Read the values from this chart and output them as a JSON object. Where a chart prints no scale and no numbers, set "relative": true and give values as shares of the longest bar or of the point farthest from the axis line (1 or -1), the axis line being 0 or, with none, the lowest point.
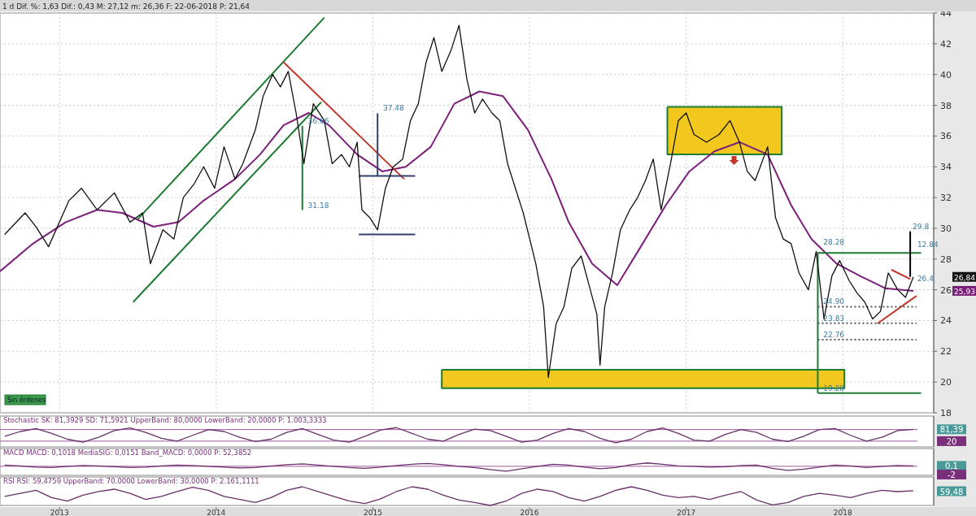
{
  "chart_data": [
    {
      "type": "line",
      "title": "1 d  Dif. %: 1,63  Dif.: 0,43  M: 27,12  m: 26,36  F: 22-06-2018  P: 21,64",
      "xlim": [
        2012.62,
        2018.58
      ],
      "ylim": [
        18,
        44
      ],
      "yticks": [
        18,
        20,
        22,
        24,
        26,
        28,
        30,
        32,
        34,
        36,
        38,
        40,
        42,
        44
      ],
      "xticks": [
        2013,
        2014,
        2015,
        2016,
        2017,
        2018
      ],
      "tick_labels": "y",
      "grid": true,
      "series": [
        {
          "color": "#111111",
          "x": [
            2012.65,
            2012.78,
            2012.85,
            2012.93,
            2013.06,
            2013.14,
            2013.24,
            2013.35,
            2013.45,
            2013.53,
            2013.58,
            2013.66,
            2013.73,
            2013.79,
            2013.86,
            2013.92,
            2013.99,
            2014.05,
            2014.12,
            2014.17,
            2014.25,
            2014.3,
            2014.36,
            2014.41,
            2014.46,
            2014.51,
            2014.56,
            2014.62,
            2014.69,
            2014.74,
            2014.8,
            2014.85,
            2014.9,
            2014.93,
            2014.98,
            2015.03,
            2015.08,
            2015.13,
            2015.19,
            2015.24,
            2015.29,
            2015.34,
            2015.39,
            2015.44,
            2015.5,
            2015.55,
            2015.6,
            2015.65,
            2015.7,
            2015.76,
            2015.81,
            2015.86,
            2015.91,
            2015.96,
            2016.04,
            2016.09,
            2016.12,
            2016.17,
            2016.22,
            2016.27,
            2016.33,
            2016.38,
            2016.43,
            2016.45,
            2016.48,
            2016.53,
            2016.58,
            2016.64,
            2016.69,
            2016.74,
            2016.79,
            2016.84,
            2016.9,
            2016.95,
            2017.0,
            2017.05,
            2017.13,
            2017.21,
            2017.28,
            2017.34,
            2017.39,
            2017.44,
            2017.52,
            2017.57,
            2017.62,
            2017.67,
            2017.72,
            2017.78,
            2017.83,
            2017.88,
            2017.93,
            2017.98,
            2018.04,
            2018.09,
            2018.14,
            2018.19,
            2018.24,
            2018.29,
            2018.35,
            2018.4,
            2018.45
          ],
          "values": [
            29.6,
            31.0,
            30.1,
            28.8,
            31.8,
            32.6,
            31.2,
            32.3,
            30.4,
            31.0,
            27.7,
            29.9,
            29.3,
            32.0,
            32.9,
            34.0,
            32.6,
            35.3,
            33.2,
            34.2,
            36.4,
            38.6,
            40.0,
            39.2,
            40.2,
            37.5,
            34.2,
            38.1,
            37.0,
            34.2,
            34.8,
            34.0,
            35.6,
            31.2,
            30.7,
            29.9,
            32.6,
            34.0,
            34.5,
            37.0,
            38.1,
            40.8,
            42.4,
            40.2,
            41.6,
            43.2,
            39.7,
            37.5,
            38.4,
            37.5,
            37.0,
            34.2,
            32.6,
            31.0,
            27.7,
            24.9,
            20.3,
            23.8,
            24.9,
            27.4,
            28.2,
            26.3,
            24.4,
            21.1,
            24.9,
            27.1,
            29.9,
            31.2,
            32.0,
            33.1,
            34.5,
            31.2,
            34.2,
            37.0,
            37.5,
            36.1,
            35.6,
            36.1,
            37.0,
            35.6,
            33.7,
            33.1,
            35.3,
            30.7,
            29.3,
            29.0,
            27.1,
            26.0,
            28.5,
            24.1,
            26.9,
            27.9,
            26.6,
            25.8,
            25.2,
            24.1,
            24.6,
            27.1,
            26.0,
            25.5,
            26.84
          ]
        },
        {
          "color": "#7b1f7b",
          "x": [
            2012.62,
            2012.83,
            2013.04,
            2013.24,
            2013.4,
            2013.6,
            2013.76,
            2013.92,
            2014.12,
            2014.28,
            2014.43,
            2014.59,
            2014.72,
            2014.9,
            2015.06,
            2015.21,
            2015.37,
            2015.52,
            2015.68,
            2015.83,
            2015.99,
            2016.14,
            2016.25,
            2016.4,
            2016.56,
            2016.71,
            2016.87,
            2017.02,
            2017.18,
            2017.34,
            2017.52,
            2017.67,
            2017.8,
            2017.96,
            2018.11,
            2018.27,
            2018.45
          ],
          "values": [
            27.2,
            29.0,
            30.4,
            31.2,
            31.0,
            30.1,
            30.4,
            31.8,
            33.2,
            34.8,
            36.7,
            37.5,
            36.7,
            34.8,
            33.7,
            34.0,
            35.3,
            38.1,
            38.9,
            38.6,
            36.4,
            33.2,
            30.4,
            27.7,
            26.3,
            28.8,
            31.5,
            33.7,
            35.0,
            35.6,
            34.8,
            31.5,
            29.3,
            27.7,
            26.9,
            26.1,
            25.93
          ]
        },
        {
          "type": "area",
          "color": "#f2c81e",
          "x": [
            2016.88,
            2017.61,
            2017.61,
            2016.88,
            2016.88
          ],
          "values": [
            37.9,
            37.9,
            34.8,
            34.8,
            37.9
          ]
        },
        {
          "type": "area",
          "color": "#f2c81e",
          "x": [
            2015.44,
            2018.01,
            2018.01,
            2015.44,
            2015.44
          ],
          "values": [
            20.8,
            20.8,
            19.6,
            19.6,
            20.8
          ]
        },
        {
          "color": "#1e7b34",
          "x": [
            2013.5,
            2014.69
          ],
          "values": [
            30.6,
            43.7
          ]
        },
        {
          "color": "#1e7b34",
          "x": [
            2013.47,
            2014.67
          ],
          "values": [
            25.2,
            38.2
          ]
        },
        {
          "color": "#c0392b",
          "x": [
            2014.43,
            2015.2
          ],
          "values": [
            40.8,
            33.2
          ]
        },
        {
          "color": "#34406b",
          "x": [
            2014.91,
            2015.27
          ],
          "values": [
            33.4,
            33.4
          ]
        },
        {
          "color": "#34406b",
          "x": [
            2014.91,
            2015.27
          ],
          "values": [
            29.6,
            29.6
          ]
        },
        {
          "color": "#34406b",
          "x": [
            2015.03,
            2015.03
          ],
          "values": [
            33.4,
            37.48
          ]
        },
        {
          "color": "#1e7b34",
          "x": [
            2014.55,
            2014.55
          ],
          "values": [
            36.66,
            31.18
          ]
        },
        {
          "color": "#1e7b34",
          "x": [
            2017.84,
            2017.84,
            2018.5
          ],
          "values": [
            19.28,
            28.4,
            28.4
          ]
        },
        {
          "color": "#1e7b34",
          "x": [
            2017.84,
            2018.5
          ],
          "values": [
            19.28,
            19.28
          ]
        },
        {
          "color": "#c0392b",
          "x": [
            2018.31,
            2018.43
          ],
          "values": [
            27.3,
            26.7
          ]
        },
        {
          "color": "#c0392b",
          "x": [
            2018.22,
            2018.47
          ],
          "values": [
            23.8,
            25.6
          ]
        },
        {
          "color": "#000000",
          "x": [
            2018.43,
            2018.43
          ],
          "values": [
            29.8,
            26.84
          ]
        },
        {
          "color": "#555555",
          "line_style": "dotted",
          "x": [
            2017.84,
            2018.47
          ],
          "values": [
            24.9,
            24.9
          ]
        },
        {
          "color": "#555555",
          "line_style": "dotted",
          "x": [
            2017.84,
            2018.47
          ],
          "values": [
            23.83,
            23.83
          ]
        },
        {
          "color": "#555555",
          "line_style": "dotted",
          "x": [
            2017.84,
            2018.47
          ],
          "values": [
            22.76,
            22.76
          ]
        }
      ],
      "annotations": [
        {
          "text": "37.48",
          "x": 2015.05,
          "y": 37.48
        },
        {
          "text": "36.66",
          "x": 2014.57,
          "y": 36.66
        },
        {
          "text": "31.18",
          "x": 2014.57,
          "y": 31.18
        },
        {
          "text": "28.28",
          "x": 2017.86,
          "y": 28.8
        },
        {
          "text": "12.84",
          "x": 2018.46,
          "y": 28.6
        },
        {
          "text": "26.4",
          "x": 2018.46,
          "y": 26.4
        },
        {
          "text": "29.8",
          "x": 2018.43,
          "y": 29.8
        },
        {
          "text": "24.90",
          "x": 2017.86,
          "y": 24.9
        },
        {
          "text": "23.83",
          "x": 2017.86,
          "y": 23.83
        },
        {
          "text": "22.76",
          "x": 2017.86,
          "y": 22.76
        },
        {
          "text": "19.28",
          "x": 2017.86,
          "y": 19.28
        },
        "26,84",
        "25,93",
        "Sin órdenes"
      ]
    },
    {
      "type": "line",
      "title": "Stochastic  SK: 81,3929  SD: 71,5921  UpperBand: 80,0000  LowerBand: 20,0000  P: 1.003,3333",
      "xlim": [
        2012.62,
        2018.58
      ],
      "ylim": [
        -10,
        150
      ],
      "yticks": [
        {
          "value": 81.39,
          "label": "81,39"
        },
        20
      ],
      "tick_labels": "y",
      "ref_lines": [
        {
          "axis": "y",
          "value": 80,
          "color": "#a05aa0"
        },
        {
          "axis": "y",
          "value": 20,
          "color": "#a05aa0"
        }
      ],
      "series": [
        {
          "color": "#6a2f6a",
          "x": [
            2012.65,
            2012.75,
            2012.85,
            2012.95,
            2013.05,
            2013.15,
            2013.25,
            2013.35,
            2013.45,
            2013.55,
            2013.65,
            2013.75,
            2013.85,
            2013.95,
            2014.05,
            2014.15,
            2014.25,
            2014.35,
            2014.45,
            2014.55,
            2014.65,
            2014.75,
            2014.85,
            2014.95,
            2015.05,
            2015.15,
            2015.25,
            2015.35,
            2015.45,
            2015.55,
            2015.65,
            2015.75,
            2015.85,
            2015.95,
            2016.05,
            2016.15,
            2016.25,
            2016.35,
            2016.45,
            2016.55,
            2016.65,
            2016.75,
            2016.85,
            2016.95,
            2017.05,
            2017.15,
            2017.25,
            2017.35,
            2017.45,
            2017.55,
            2017.65,
            2017.75,
            2017.85,
            2017.95,
            2018.05,
            2018.15,
            2018.25,
            2018.35,
            2018.45
          ],
          "values": [
            45,
            70,
            85,
            60,
            30,
            15,
            40,
            75,
            88,
            65,
            35,
            20,
            50,
            80,
            70,
            40,
            18,
            30,
            65,
            85,
            55,
            25,
            15,
            45,
            78,
            90,
            60,
            30,
            20,
            55,
            82,
            75,
            45,
            15,
            25,
            60,
            85,
            70,
            35,
            12,
            30,
            70,
            88,
            60,
            25,
            20,
            55,
            80,
            65,
            30,
            18,
            45,
            80,
            85,
            50,
            20,
            40,
            75,
            81
          ]
        }
      ]
    },
    {
      "type": "line",
      "title": "MACD  MACD: 0,1018  MediaSIG: 0,0151  Band_MACD: 0,0000  P: 52,3852",
      "xlim": [
        2012.62,
        2018.58
      ],
      "ylim": [
        -2.2,
        4.3
      ],
      "yticks": [
        {
          "value": 0.1,
          "label": "0,1"
        },
        -2
      ],
      "tick_labels": "y",
      "ref_lines": [
        {
          "axis": "y",
          "value": 0,
          "color": "#a05aa0"
        }
      ],
      "series": [
        {
          "color": "#6a2f6a",
          "x": [
            2012.65,
            2012.75,
            2012.85,
            2012.95,
            2013.05,
            2013.15,
            2013.25,
            2013.35,
            2013.45,
            2013.55,
            2013.65,
            2013.75,
            2013.85,
            2013.95,
            2014.05,
            2014.15,
            2014.25,
            2014.35,
            2014.45,
            2014.55,
            2014.65,
            2014.75,
            2014.85,
            2014.95,
            2015.05,
            2015.15,
            2015.25,
            2015.35,
            2015.45,
            2015.55,
            2015.65,
            2015.75,
            2015.85,
            2015.95,
            2016.05,
            2016.15,
            2016.25,
            2016.35,
            2016.45,
            2016.55,
            2016.65,
            2016.75,
            2016.85,
            2016.95,
            2017.05,
            2017.15,
            2017.25,
            2017.35,
            2017.45,
            2017.55,
            2017.65,
            2017.75,
            2017.85,
            2017.95,
            2018.05,
            2018.15,
            2018.25,
            2018.35,
            2018.45
          ],
          "values": [
            0.3,
            0.1,
            -0.2,
            -0.3,
            0,
            0.2,
            0.1,
            -0.1,
            -0.3,
            -0.2,
            0.1,
            0.3,
            0.2,
            0,
            -0.2,
            -0.4,
            -0.3,
            0.1,
            0.4,
            0.6,
            0.3,
            0,
            -0.3,
            -0.5,
            -0.2,
            0.2,
            0.5,
            0.7,
            0.4,
            0,
            -0.3,
            -0.8,
            -1.2,
            -0.6,
            0,
            0.5,
            0.3,
            -0.2,
            -0.6,
            -0.3,
            0.4,
            0.8,
            0.5,
            0.1,
            0,
            -0.2,
            -0.1,
            0.2,
            0.3,
            -0.5,
            -1.0,
            -0.7,
            -0.2,
            0.3,
            0.1,
            -0.3,
            0,
            0.2,
            0.1
          ]
        }
      ]
    },
    {
      "type": "line",
      "title": "RSI  RSI: 59,4759  UpperBand: 70,0000  LowerBand: 30,0000  P: 2.161,1111",
      "xlim": [
        2012.62,
        2018.58
      ],
      "relative": true,
      "xticks": [
        2013,
        2014,
        2015,
        2016,
        2017,
        2018
      ],
      "annotations": [
        "59,48"
      ],
      "series": [
        {
          "color": "#6a2f6a",
          "x": [
            2012.65,
            2012.75,
            2012.85,
            2012.95,
            2013.05,
            2013.15,
            2013.25,
            2013.35,
            2013.45,
            2013.55,
            2013.65,
            2013.75,
            2013.85,
            2013.95,
            2014.05,
            2014.15,
            2014.25,
            2014.35,
            2014.45,
            2014.55,
            2014.65,
            2014.75,
            2014.85,
            2014.95,
            2015.05,
            2015.15,
            2015.25,
            2015.35,
            2015.45,
            2015.55,
            2015.65,
            2015.75,
            2015.85,
            2015.95,
            2016.05,
            2016.15,
            2016.25,
            2016.35,
            2016.45,
            2016.55,
            2016.65,
            2016.75,
            2016.85,
            2016.95,
            2017.05,
            2017.15,
            2017.25,
            2017.35,
            2017.45,
            2017.55,
            2017.65,
            2017.75,
            2017.85,
            2017.95,
            2018.05,
            2018.15,
            2018.25,
            2018.35,
            2018.45
          ],
          "values": [
            0.48,
            0.65,
            0.81,
            0.42,
            0.23,
            0.55,
            0.74,
            0.87,
            0.65,
            0.32,
            0.48,
            0.74,
            0.97,
            0.81,
            0.48,
            0.32,
            0.16,
            0.42,
            0.81,
            1,
            0.74,
            0.48,
            0.23,
            0.1,
            0.35,
            0.74,
            1,
            0.87,
            0.55,
            0.29,
            0.16,
            0,
            0.23,
            0.65,
            0.87,
            0.74,
            0.42,
            0.23,
            0.48,
            0.81,
            1,
            0.81,
            0.55,
            0.42,
            0.48,
            0.32,
            0.55,
            0.74,
            0.29,
            0.03,
            0.16,
            0.48,
            0.65,
            0.55,
            0.42,
            0.65,
            0.81,
            0.74,
            0.79
          ]
        }
      ]
    }
  ]
}
